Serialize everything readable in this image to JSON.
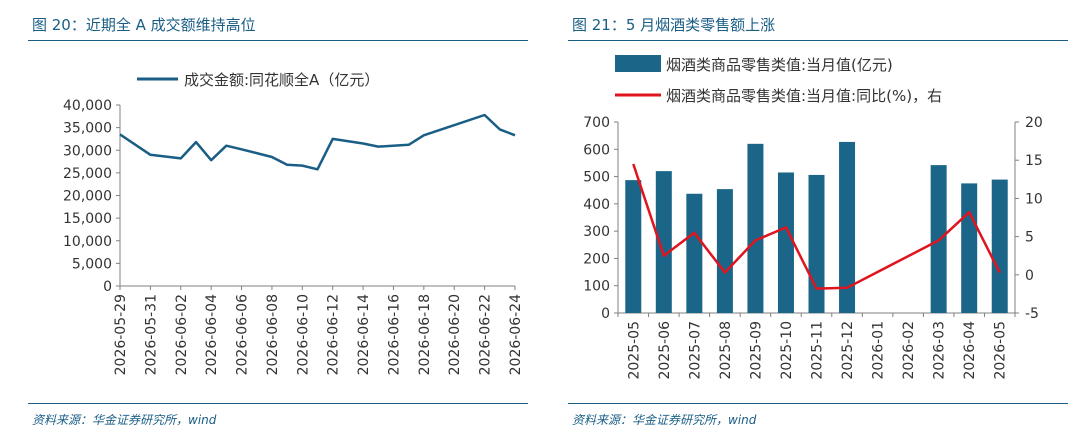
{
  "left_panel": {
    "title": "图 20：近期全 A 成交额维持高位",
    "source": "资料来源：华金证券研究所，wind"
  },
  "right_panel": {
    "title": "图 21：5 月烟酒类零售额上涨",
    "source": "资料来源：华金证券研究所，wind"
  },
  "colors": {
    "primary": "#1a5e86",
    "bar": "#1b6688",
    "red_line": "#e0141e",
    "axis": "#808080"
  },
  "chart_data": [
    {
      "type": "line",
      "title": "",
      "legend": "top-center",
      "x": [
        "2026-05-29",
        "2026-05-31",
        "2026-06-02",
        "2026-06-03",
        "2026-06-04",
        "2026-06-05",
        "2026-06-06",
        "2026-06-08",
        "2026-06-09",
        "2026-06-10",
        "2026-06-11",
        "2026-06-12",
        "2026-06-14",
        "2026-06-15",
        "2026-06-17",
        "2026-06-18",
        "2026-06-22",
        "2026-06-23",
        "2026-06-24"
      ],
      "xtick_labels": [
        "2026-05-29",
        "2026-05-31",
        "2026-06-02",
        "2026-06-04",
        "2026-06-06",
        "2026-06-08",
        "2026-06-10",
        "2026-06-12",
        "2026-06-14",
        "2026-06-16",
        "2026-06-18",
        "2026-06-20",
        "2026-06-22",
        "2026-06-24"
      ],
      "series": [
        {
          "name": "成交金额:同花顺全A（亿元）",
          "values": [
            33500,
            29000,
            28200,
            31800,
            27800,
            31000,
            30200,
            28500,
            26800,
            26600,
            25800,
            32500,
            31500,
            30800,
            31200,
            33300,
            37800,
            34600,
            33300
          ]
        }
      ],
      "ylim": [
        0,
        40000
      ],
      "yticks": [
        0,
        5000,
        10000,
        15000,
        20000,
        25000,
        30000,
        35000,
        40000
      ],
      "ytick_labels": [
        "0",
        "5,000",
        "10,000",
        "15,000",
        "20,000",
        "25,000",
        "30,000",
        "35,000",
        "40,000"
      ],
      "grid": false
    },
    {
      "type": "bar",
      "title": "",
      "legend": "top",
      "categories": [
        "2025-05",
        "2025-06",
        "2025-07",
        "2025-08",
        "2025-09",
        "2025-10",
        "2025-11",
        "2025-12",
        "2026-01",
        "2026-02",
        "2026-03",
        "2026-04",
        "2026-05"
      ],
      "series": [
        {
          "name": "烟酒类商品零售类值:当月值(亿元)",
          "type": "bar",
          "axis": "left",
          "values": [
            487,
            520,
            437,
            454,
            620,
            515,
            506,
            627,
            null,
            null,
            542,
            475,
            489
          ]
        },
        {
          "name": "烟酒类商品零售类值:当月值:同比(%)，右",
          "type": "line",
          "axis": "right",
          "values": [
            14.5,
            2.5,
            5.5,
            0.3,
            4.5,
            6.2,
            -1.8,
            -1.7,
            null,
            null,
            4.5,
            8.2,
            0.3
          ]
        }
      ],
      "ylim": [
        0,
        700
      ],
      "yticks": [
        0,
        100,
        200,
        300,
        400,
        500,
        600,
        700
      ],
      "y2lim": [
        -5,
        20
      ],
      "y2ticks": [
        -5,
        0,
        5,
        10,
        15,
        20
      ],
      "grid": false
    }
  ]
}
